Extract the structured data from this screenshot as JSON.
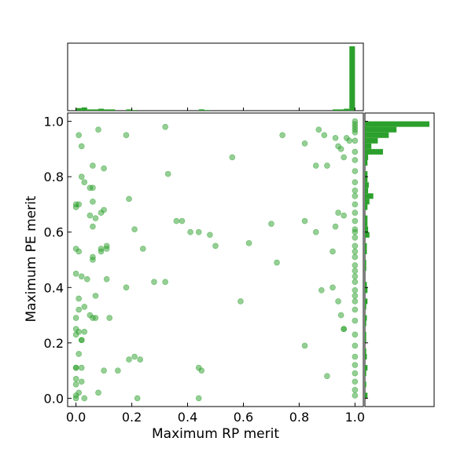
{
  "chart_data": {
    "type": "scatter",
    "title": "",
    "xlabel": "Maximum RP merit",
    "ylabel": "Maximum PE merit",
    "xlim": [
      -0.03,
      1.03
    ],
    "ylim": [
      -0.03,
      1.03
    ],
    "x_ticks": [
      "0.0",
      "0.2",
      "0.4",
      "0.6",
      "0.8",
      "1.0"
    ],
    "y_ticks": [
      "0.0",
      "0.2",
      "0.4",
      "0.6",
      "0.8",
      "1.0"
    ],
    "grid": false,
    "marginal_histograms": {
      "top": {
        "bins": [
          0.0,
          0.02,
          0.04,
          0.06,
          0.08,
          0.1,
          0.12,
          0.18,
          0.2,
          0.44,
          0.46,
          0.92,
          0.94,
          0.96,
          0.98
        ],
        "heights": [
          0.04,
          0.05,
          0.02,
          0.02,
          0.03,
          0.02,
          0.02,
          0.02,
          0.01,
          0.02,
          0.01,
          0.02,
          0.02,
          0.03,
          1.0
        ]
      },
      "right": {
        "bins": [
          0.99,
          0.97,
          0.95,
          0.93,
          0.91,
          0.89,
          0.87,
          0.85,
          0.81,
          0.79,
          0.77,
          0.75,
          0.73,
          0.71,
          0.69,
          0.65,
          0.63,
          0.61,
          0.59,
          0.55,
          0.53,
          0.49,
          0.47,
          0.41,
          0.39,
          0.35,
          0.33,
          0.29,
          0.27,
          0.23,
          0.21,
          0.17,
          0.15,
          0.11,
          0.09,
          0.05,
          0.01
        ],
        "heights": [
          1.0,
          0.49,
          0.37,
          0.2,
          0.1,
          0.28,
          0.05,
          0.04,
          0.04,
          0.04,
          0.06,
          0.05,
          0.13,
          0.07,
          0.04,
          0.04,
          0.04,
          0.05,
          0.07,
          0.03,
          0.03,
          0.02,
          0.02,
          0.03,
          0.04,
          0.04,
          0.02,
          0.03,
          0.02,
          0.02,
          0.02,
          0.02,
          0.03,
          0.04,
          0.02,
          0.02,
          0.04
        ]
      }
    },
    "series": [
      {
        "color": "#2ca02c",
        "opacity": 0.5,
        "x": [
          0.0,
          0.0,
          0.01,
          0.02,
          0.02,
          0.03,
          0.06,
          0.05,
          0.06,
          0.06,
          0.08,
          0.1,
          0.09,
          0.11,
          0.09,
          0.18,
          0.19,
          0.32,
          0.33,
          0.56,
          0.74,
          0.82,
          0.87,
          0.89,
          0.9,
          0.86,
          0.93,
          0.94,
          0.95,
          0.97,
          0.96,
          0.98,
          0.0,
          0.01,
          0.0,
          0.05,
          0.07,
          0.06,
          0.1,
          0.11,
          0.06,
          0.0,
          0.01,
          0.09,
          0.06,
          0.21,
          0.24,
          0.36,
          0.38,
          0.41,
          0.44,
          0.48,
          0.5,
          0.62,
          0.7,
          0.72,
          0.82,
          0.86,
          0.92,
          0.93,
          0.94,
          0.96,
          0.0,
          0.02,
          0.04,
          0.07,
          0.11,
          0.18,
          0.28,
          0.32,
          0.59,
          0.88,
          0.92,
          0.94,
          0.96,
          0.01,
          0.03,
          0.05,
          0.06,
          0.07,
          0.12,
          0.95,
          0.96,
          0.01,
          0.0,
          0.01,
          0.02,
          0.0,
          0.0,
          0.03,
          0.02,
          0.19,
          0.21,
          0.23,
          0.82,
          0.01,
          0.0,
          0.02,
          0.0,
          0.0,
          0.02,
          0.0,
          0.01,
          0.03,
          0.08,
          0.1,
          0.15,
          0.22,
          0.44,
          0.45,
          0.9,
          0.44,
          1.0,
          1.0,
          1.0,
          1.0,
          1.0,
          1.0,
          1.0,
          1.0,
          1.0,
          1.0,
          1.0,
          1.0,
          1.0,
          1.0,
          1.0,
          1.0,
          1.0,
          1.0,
          1.0,
          1.0,
          1.0,
          1.0,
          1.0,
          1.0,
          1.0,
          1.0,
          1.0,
          1.0,
          1.0,
          1.0,
          1.0,
          1.0,
          1.0,
          1.0,
          1.0,
          1.0,
          1.0,
          1.0
        ],
        "y": [
          0.0,
          0.01,
          0.95,
          0.91,
          0.8,
          0.78,
          0.84,
          0.76,
          0.76,
          0.71,
          0.97,
          0.83,
          0.67,
          0.55,
          0.53,
          0.95,
          0.72,
          0.98,
          0.81,
          0.87,
          0.95,
          0.92,
          0.97,
          0.95,
          0.84,
          0.84,
          0.94,
          0.91,
          0.9,
          0.94,
          0.87,
          0.93,
          0.7,
          0.7,
          0.69,
          0.66,
          0.65,
          0.62,
          0.68,
          0.54,
          0.5,
          0.54,
          0.53,
          0.54,
          0.51,
          0.61,
          0.54,
          0.64,
          0.64,
          0.6,
          0.6,
          0.59,
          0.55,
          0.56,
          0.63,
          0.49,
          0.64,
          0.6,
          0.53,
          0.62,
          0.67,
          0.66,
          0.45,
          0.44,
          0.43,
          0.37,
          0.43,
          0.4,
          0.42,
          0.42,
          0.35,
          0.39,
          0.4,
          0.35,
          0.25,
          0.36,
          0.33,
          0.3,
          0.29,
          0.29,
          0.29,
          0.3,
          0.25,
          0.32,
          0.29,
          0.24,
          0.21,
          0.25,
          0.23,
          0.24,
          0.21,
          0.14,
          0.15,
          0.14,
          0.19,
          0.16,
          0.11,
          0.11,
          0.11,
          0.07,
          0.06,
          0.05,
          0.02,
          0.0,
          0.02,
          0.1,
          0.1,
          0.0,
          0.11,
          0.1,
          0.08,
          0.0,
          1.0,
          0.99,
          0.98,
          0.97,
          0.96,
          0.93,
          0.89,
          0.86,
          0.82,
          0.78,
          0.75,
          0.73,
          0.7,
          0.67,
          0.64,
          0.61,
          0.6,
          0.58,
          0.55,
          0.53,
          0.51,
          0.48,
          0.46,
          0.44,
          0.42,
          0.39,
          0.37,
          0.35,
          0.32,
          0.28,
          0.23,
          0.19,
          0.15,
          0.12,
          0.09,
          0.06,
          0.03,
          0.01
        ]
      }
    ]
  }
}
